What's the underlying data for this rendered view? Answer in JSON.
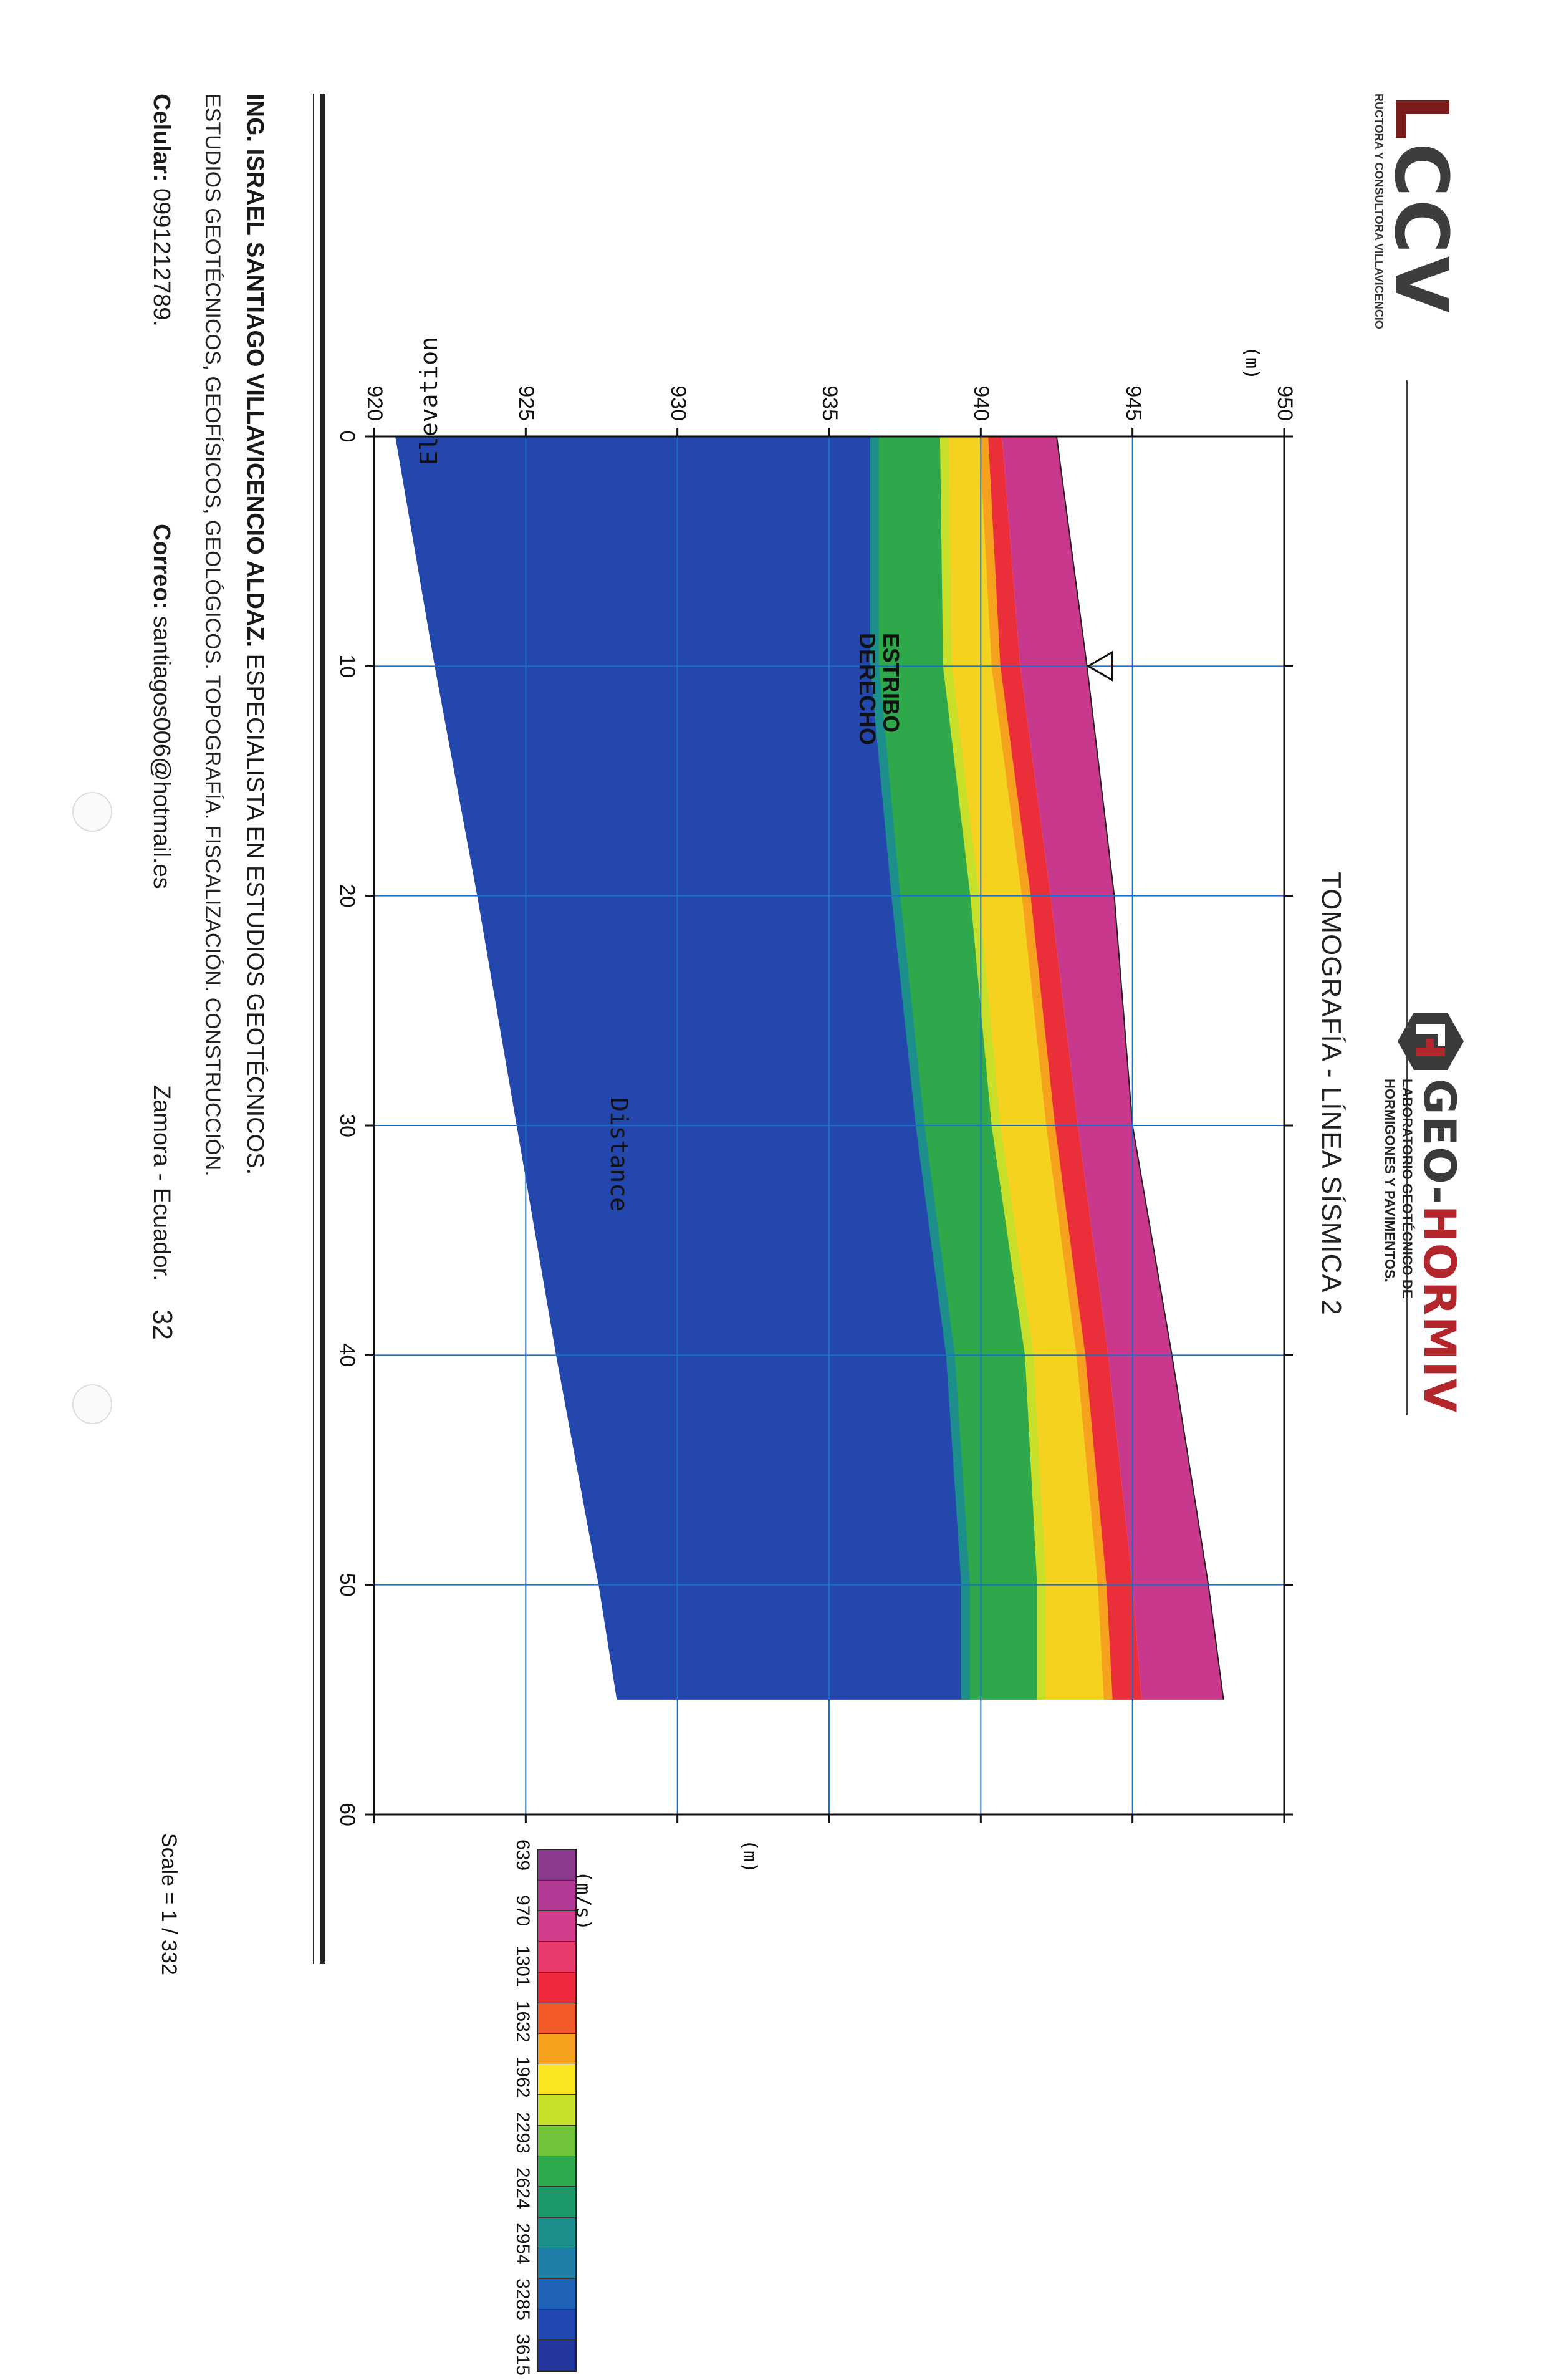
{
  "header": {
    "left_logo_text": "CCV",
    "left_logo_prefix": "L",
    "left_logo_subtitle": "RUCTORA Y CONSULTORA VILLAVICENCIO",
    "right_logo_text_a": "GEO-",
    "right_logo_text_b": "HORMIV",
    "right_logo_line1": "LABORATORIO GEOTÉCNICO DE",
    "right_logo_line2": "HORMIGONES Y PAVIMENTOS."
  },
  "title": "TOMOGRAFÍA - LÍNEA SÍSMICA 2",
  "chart_data": {
    "type": "heatmap",
    "title": "TOMOGRAFÍA - LÍNEA SÍSMICA 2",
    "xlabel": "Distance",
    "ylabel": "Elevation",
    "x_unit": "(m)",
    "y_unit": "(m)",
    "xlim": [
      0,
      60
    ],
    "ylim": [
      920,
      950
    ],
    "x_ticks": [
      "0",
      "10",
      "20",
      "30",
      "40",
      "50",
      "60"
    ],
    "y_ticks": [
      "920",
      "925",
      "930",
      "935",
      "940",
      "945",
      "950"
    ],
    "grid": true,
    "x_values": [
      0,
      10,
      20,
      30,
      40,
      50,
      55
    ],
    "surface_elevation": [
      942.5,
      943.5,
      944.4,
      945.0,
      946.3,
      947.5,
      948.0
    ],
    "bottom_elevation": [
      920.7,
      922.0,
      923.4,
      924.7,
      926.0,
      927.4,
      928.0
    ],
    "isoline_elevation_639": [
      942.5,
      943.5,
      944.4,
      945.0,
      946.3,
      947.5,
      948.0
    ],
    "isoline_elevation_1301": [
      940.7,
      941.3,
      942.3,
      943.2,
      944.2,
      945.0,
      945.3
    ],
    "isoline_elevation_1962": [
      940.1,
      940.5,
      941.5,
      942.3,
      943.3,
      944.0,
      944.2
    ],
    "isoline_elevation_2624": [
      938.8,
      938.9,
      939.8,
      940.5,
      941.6,
      942.0,
      942.0
    ],
    "isoline_elevation_3285": [
      936.5,
      936.5,
      937.2,
      938.0,
      939.0,
      939.5,
      939.5
    ],
    "annotation": {
      "line1": "ESTRIBO",
      "line2": "DERECHO",
      "x": 10,
      "elevation": 943.5
    },
    "legend": {
      "unit": "(m/s)",
      "labels": [
        "639",
        "970",
        "1301",
        "1632",
        "1962",
        "2293",
        "2624",
        "2954",
        "3285",
        "3615"
      ],
      "colors": [
        "#8c3a8e",
        "#b33a94",
        "#d23c8a",
        "#e83a6b",
        "#ee2a3c",
        "#f25a2a",
        "#f7a21f",
        "#f8e61f",
        "#c8e02a",
        "#72c43a",
        "#2eaa4e",
        "#1d9a6a",
        "#1c8f8c",
        "#1d7fa8",
        "#1f63b8",
        "#2148b0",
        "#23379e"
      ]
    },
    "scale": "Scale = 1 / 332"
  },
  "footer": {
    "name": "ING. ISRAEL SANTIAGO VILLAVICENCIO ALDAZ.",
    "role": " ESPECIALISTA EN ESTUDIOS GEOTÉCNICOS.",
    "services": "ESTUDIOS GEOTÉCNICOS, GEOFÍSICOS, GEOLÓGICOS. TOPOGRAFÍA. FISCALIZACIÓN. CONSTRUCCIÓN.",
    "phone_label": "Celular:",
    "phone": " 0991212789.",
    "email_label": "Correo:",
    "email": " santiagos006@hotmail.es",
    "location": "Zamora - Ecuador.",
    "page_number": "32"
  }
}
